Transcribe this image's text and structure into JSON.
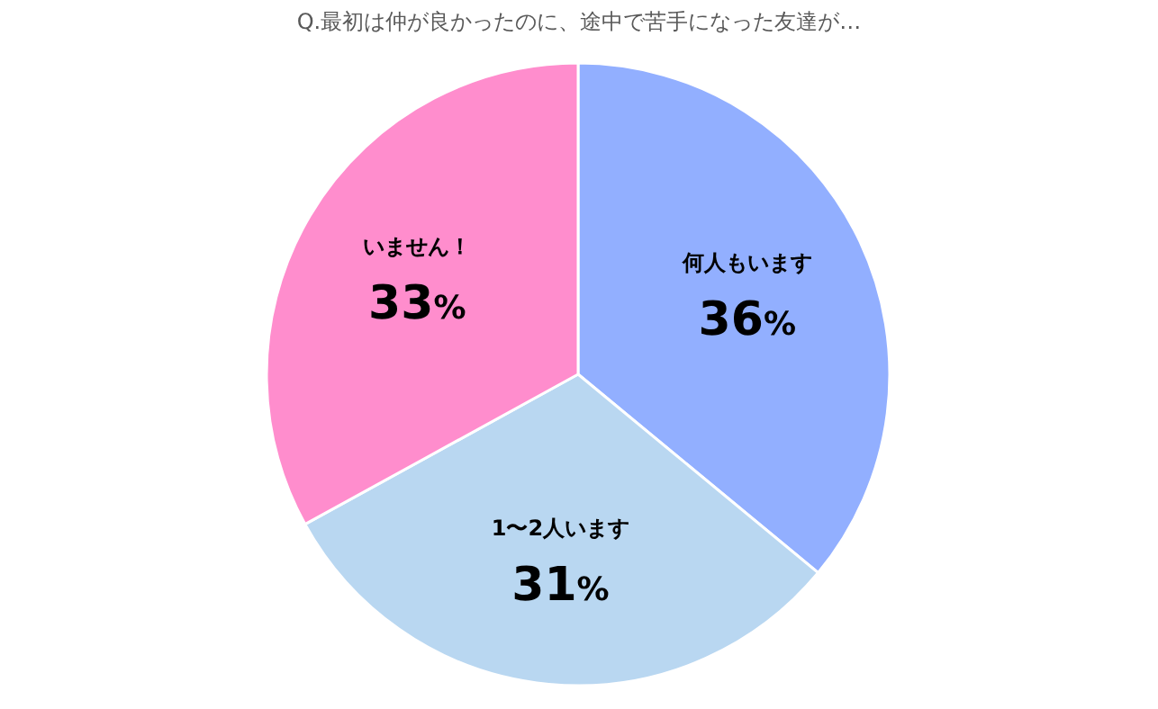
{
  "chart_data": {
    "type": "pie",
    "title": "Q.最初は仲が良かったのに、途中で苦手になった友達が…",
    "categories": [
      "何人もいます",
      "1〜2人います",
      "いません！"
    ],
    "values": [
      36,
      31,
      33
    ],
    "colors": [
      "#92afff",
      "#b9d7f1",
      "#ff8dcd"
    ],
    "value_labels": [
      "36%",
      "31%",
      "33%"
    ]
  }
}
